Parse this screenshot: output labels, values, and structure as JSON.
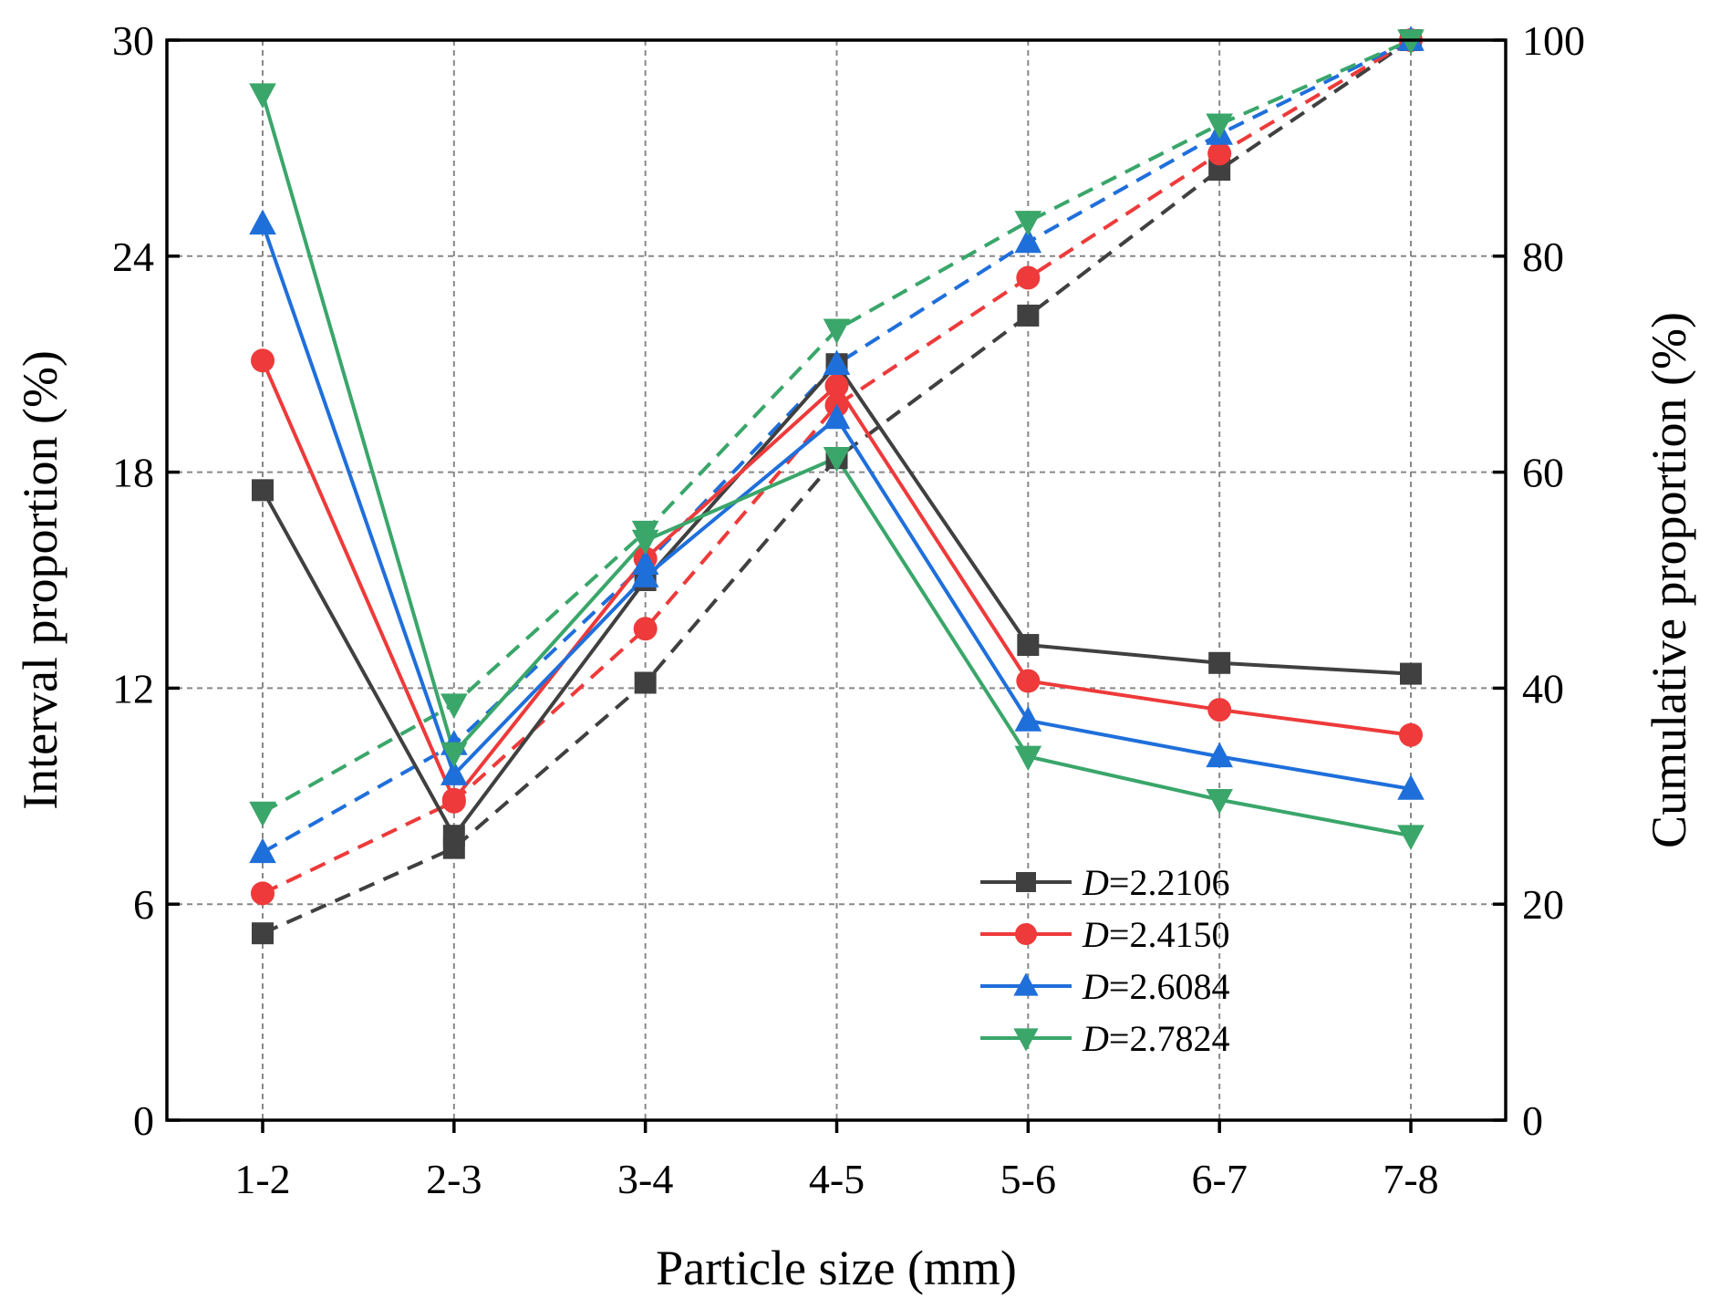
{
  "chart_data": {
    "type": "line",
    "title": "",
    "xlabel": "Particle size (mm)",
    "ylabel_left": "Interval proportion (%)",
    "ylabel_right": "Cumulative proportion (%)",
    "categories": [
      "1-2",
      "2-3",
      "3-4",
      "4-5",
      "5-6",
      "6-7",
      "7-8"
    ],
    "ylim_left": [
      0,
      30
    ],
    "ylim_right": [
      0,
      100
    ],
    "yticks_left": [
      0,
      6,
      12,
      18,
      24,
      30
    ],
    "yticks_right": [
      0,
      20,
      40,
      60,
      80,
      100
    ],
    "grid": true,
    "legend_position": "lower-right",
    "legend": [
      {
        "italic": "D",
        "rest": "=2.2106"
      },
      {
        "italic": "D",
        "rest": "=2.4150"
      },
      {
        "italic": "D",
        "rest": "=2.6084"
      },
      {
        "italic": "D",
        "rest": "=2.7824"
      }
    ],
    "series": [
      {
        "name": "D=2.2106",
        "color": "#404040",
        "marker": "square",
        "interval": [
          17.5,
          7.9,
          15.0,
          21.0,
          13.2,
          12.7,
          12.4
        ],
        "cumulative": [
          17.3,
          25.2,
          40.5,
          61.3,
          74.5,
          88.0,
          100.0
        ]
      },
      {
        "name": "D=2.4150",
        "color": "#ee3a3a",
        "marker": "circle",
        "interval": [
          21.1,
          8.9,
          15.6,
          20.4,
          12.2,
          11.4,
          10.7
        ],
        "cumulative": [
          21.0,
          29.5,
          45.5,
          66.2,
          78.0,
          89.5,
          100.0
        ]
      },
      {
        "name": "D=2.6084",
        "color": "#1f6fdb",
        "marker": "triangle-up",
        "interval": [
          24.9,
          9.6,
          15.1,
          19.5,
          11.1,
          10.1,
          9.2
        ],
        "cumulative": [
          24.8,
          34.8,
          51.5,
          70.0,
          81.3,
          91.3,
          100.0
        ]
      },
      {
        "name": "D=2.7824",
        "color": "#3aa66a",
        "marker": "triangle-down",
        "interval": [
          28.5,
          10.2,
          16.1,
          18.4,
          10.1,
          8.9,
          7.9
        ],
        "cumulative": [
          28.5,
          38.5,
          54.5,
          73.2,
          83.2,
          92.2,
          100.0
        ]
      }
    ]
  }
}
